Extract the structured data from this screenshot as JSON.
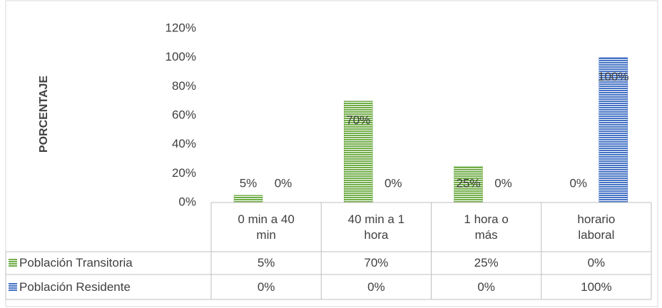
{
  "chart_data": {
    "type": "bar",
    "y_label": "PORCENTAJE",
    "categories": [
      "0 min a 40 min",
      "40 min a 1 hora",
      "1 hora o más",
      "horario laboral"
    ],
    "series": [
      {
        "name": "Población Transitoria",
        "color": "#70ad47",
        "values": [
          5,
          70,
          25,
          0
        ],
        "value_labels": [
          "5%",
          "70%",
          "25%",
          "0%"
        ]
      },
      {
        "name": "Población Residente",
        "color": "#4472c4",
        "values": [
          0,
          0,
          0,
          100
        ],
        "value_labels": [
          "0%",
          "0%",
          "0%",
          "100%"
        ]
      }
    ],
    "ylim": [
      0,
      120
    ],
    "yticks": [
      {
        "value": 0,
        "label": "0%"
      },
      {
        "value": 20,
        "label": "20%"
      },
      {
        "value": 40,
        "label": "40%"
      },
      {
        "value": 60,
        "label": "60%"
      },
      {
        "value": 80,
        "label": "80%"
      },
      {
        "value": 100,
        "label": "100%"
      },
      {
        "value": 120,
        "label": "120%"
      }
    ],
    "grid": false,
    "data_table": true
  }
}
